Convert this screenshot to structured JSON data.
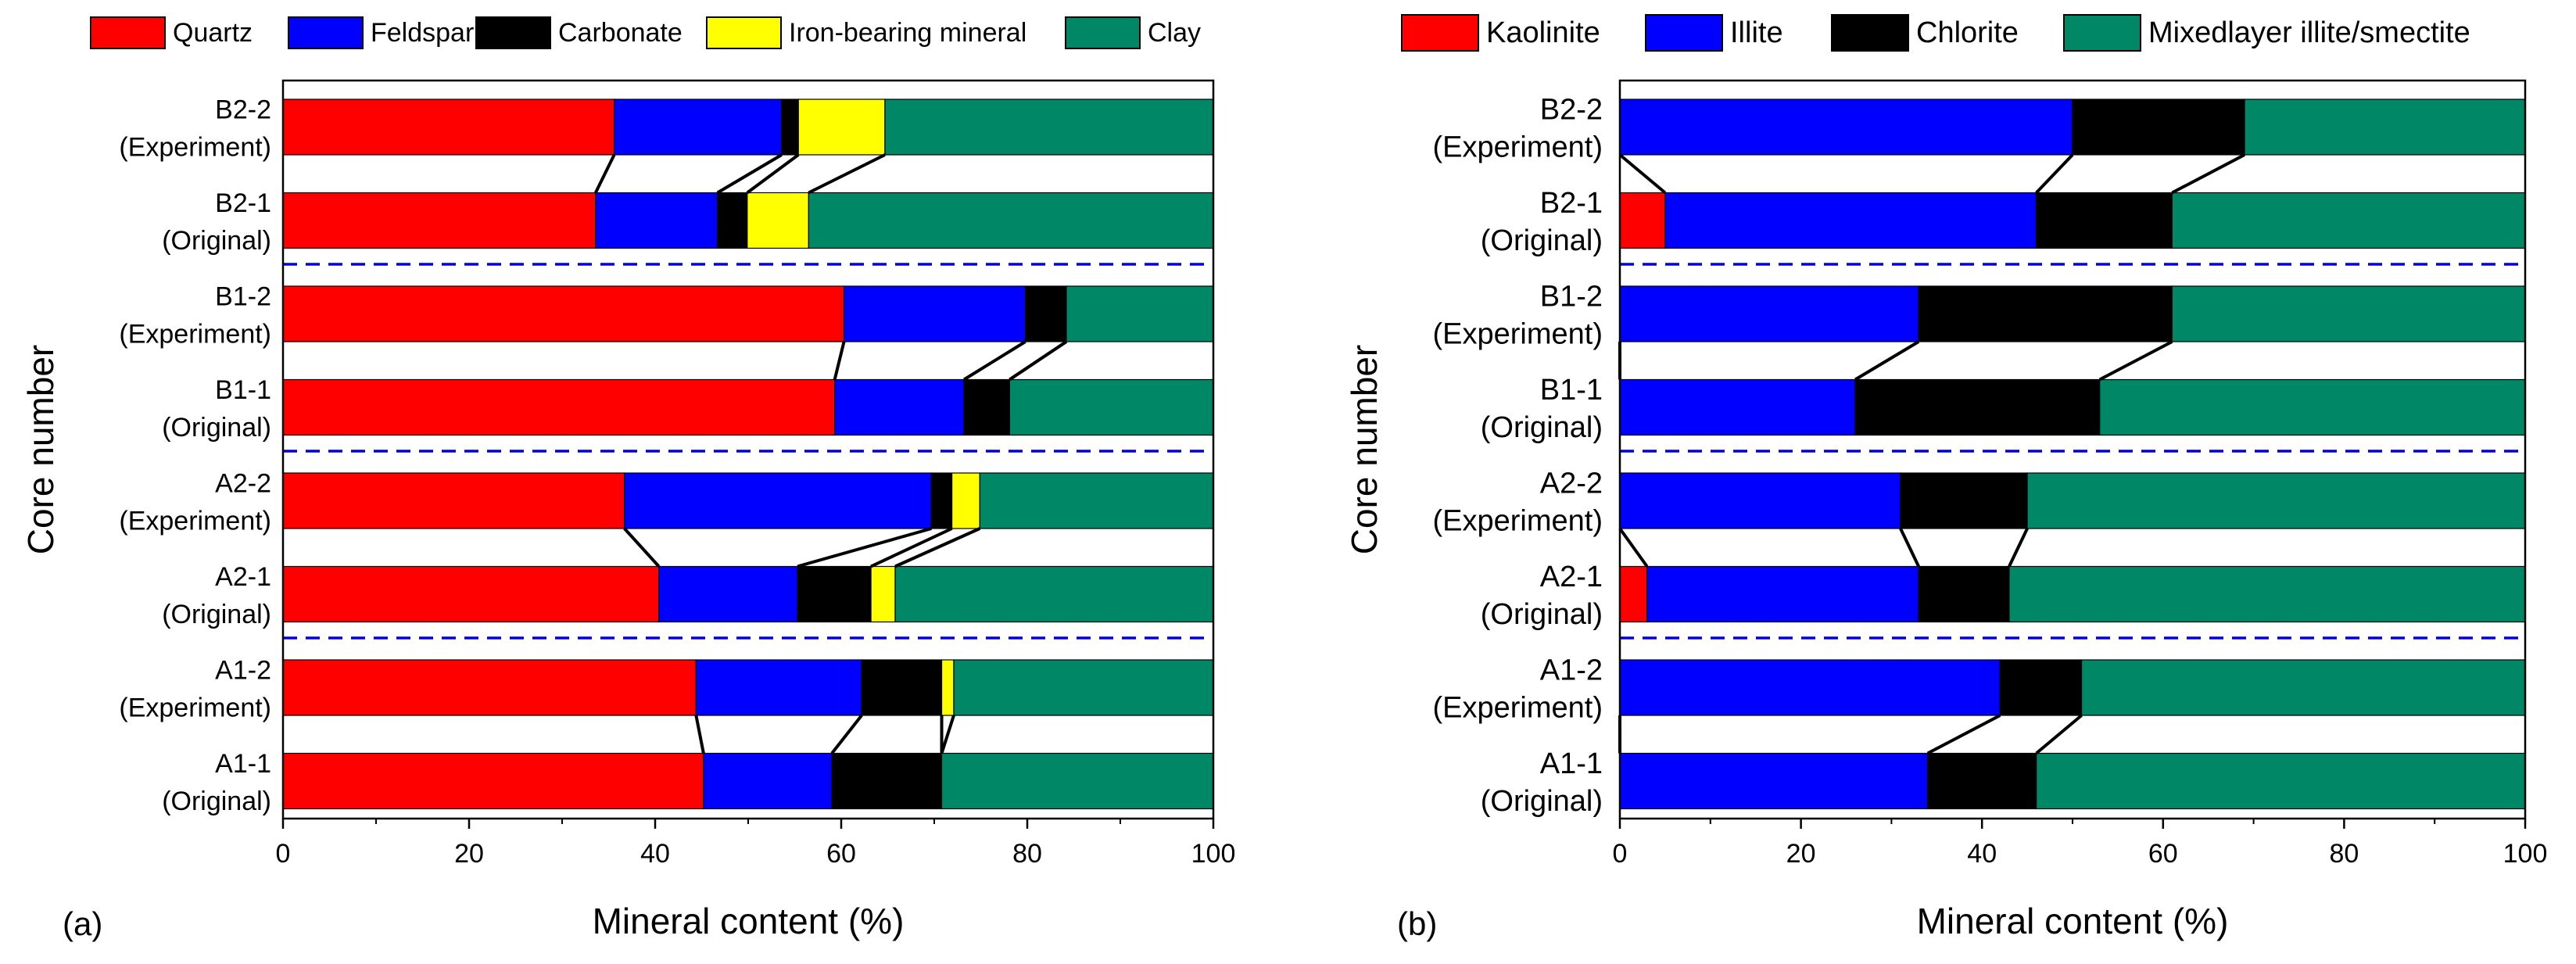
{
  "chart_data": [
    {
      "panel_label": "(a)",
      "type": "bar",
      "orientation": "horizontal",
      "stacked": true,
      "xlabel": "Mineral content (%)",
      "ylabel": "Core number",
      "xlim": [
        0,
        100
      ],
      "x_ticks": [
        "0",
        "20",
        "40",
        "60",
        "80",
        "100"
      ],
      "legend_position": "top",
      "categories": [
        {
          "line1": "B2-2",
          "line2": "(Experiment)"
        },
        {
          "line1": "B2-1",
          "line2": "(Original)"
        },
        {
          "line1": "B1-2",
          "line2": "(Experiment)"
        },
        {
          "line1": "B1-1",
          "line2": "(Original)"
        },
        {
          "line1": "A2-2",
          "line2": "(Experiment)"
        },
        {
          "line1": "A2-1",
          "line2": "(Original)"
        },
        {
          "line1": "A1-2",
          "line2": "(Experiment)"
        },
        {
          "line1": "A1-1",
          "line2": "(Original)"
        }
      ],
      "series": [
        {
          "name": "Quartz",
          "color": "#ff0000",
          "values": [
            35.6,
            33.6,
            60.3,
            59.3,
            36.7,
            40.4,
            44.4,
            45.2
          ]
        },
        {
          "name": "Feldspar",
          "color": "#0000ff",
          "values": [
            18.0,
            13.1,
            19.5,
            13.9,
            33.0,
            14.9,
            17.8,
            13.8
          ]
        },
        {
          "name": "Carbonate",
          "color": "#000000",
          "values": [
            1.8,
            3.2,
            4.4,
            4.9,
            2.2,
            7.9,
            8.6,
            11.8
          ]
        },
        {
          "name": "Iron-bearing mineral",
          "color": "#ffff00",
          "values": [
            9.3,
            6.6,
            0.0,
            0.0,
            3.0,
            2.6,
            1.3,
            0.0
          ]
        },
        {
          "name": "Clay",
          "color": "#008866",
          "values": [
            35.3,
            43.5,
            15.8,
            21.9,
            25.1,
            34.2,
            27.9,
            29.2
          ]
        }
      ]
    },
    {
      "panel_label": "(b)",
      "type": "bar",
      "orientation": "horizontal",
      "stacked": true,
      "xlabel": "Mineral content (%)",
      "ylabel": "Core number",
      "xlim": [
        0,
        100
      ],
      "x_ticks": [
        "0",
        "20",
        "40",
        "60",
        "80",
        "100"
      ],
      "legend_position": "top",
      "categories": [
        {
          "line1": "B2-2",
          "line2": "(Experiment)"
        },
        {
          "line1": "B2-1",
          "line2": "(Original)"
        },
        {
          "line1": "B1-2",
          "line2": "(Experiment)"
        },
        {
          "line1": "B1-1",
          "line2": "(Original)"
        },
        {
          "line1": "A2-2",
          "line2": "(Experiment)"
        },
        {
          "line1": "A2-1",
          "line2": "(Original)"
        },
        {
          "line1": "A1-2",
          "line2": "(Experiment)"
        },
        {
          "line1": "A1-1",
          "line2": "(Original)"
        }
      ],
      "series": [
        {
          "name": "Kaolinite",
          "color": "#ff0000",
          "values": [
            0,
            5,
            0,
            0,
            0,
            3,
            0,
            0
          ]
        },
        {
          "name": "Illite",
          "color": "#0000ff",
          "values": [
            50,
            41,
            33,
            26,
            31,
            30,
            42,
            34
          ]
        },
        {
          "name": "Chlorite",
          "color": "#000000",
          "values": [
            19,
            15,
            28,
            27,
            14,
            10,
            9,
            12
          ]
        },
        {
          "name": "Mixedlayer illite/smectite",
          "color": "#008866",
          "values": [
            31,
            39,
            39,
            47,
            55,
            57,
            49,
            54
          ]
        }
      ]
    }
  ]
}
